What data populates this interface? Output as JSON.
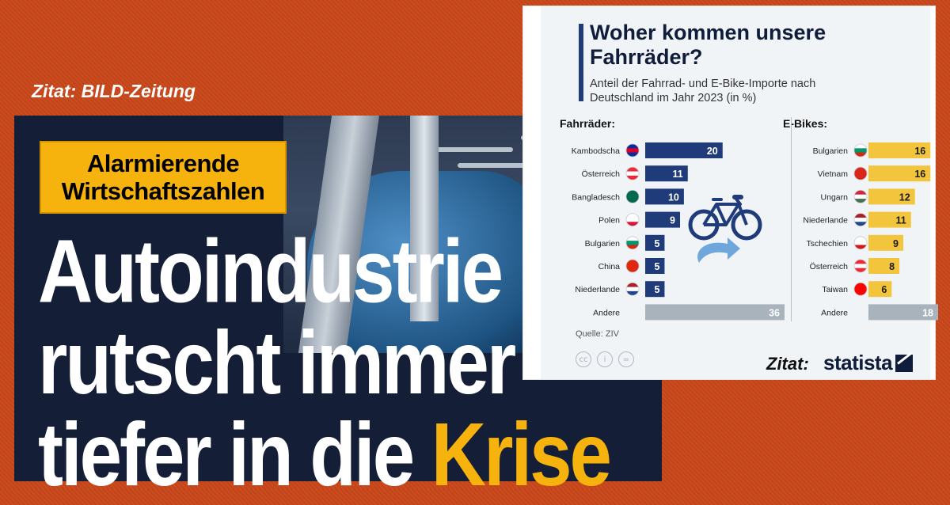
{
  "left_quote": "Zitat: BILD-Zeitung",
  "bild": {
    "tag_lines": [
      "Alarmierende",
      "Wirtschaftszahlen"
    ],
    "headline": [
      "Autoindustrie",
      "rutscht immer",
      "tiefer in die "
    ],
    "headline_accent": "Krise"
  },
  "statista": {
    "title": "Woher kommen unsere Fahrräder?",
    "subtitle": "Anteil der Fahrrad- und E-Bike-Importe nach Deutschland im Jahr 2023 (in %)",
    "source": "Quelle: ZIV",
    "license_icons": [
      "cc-icon",
      "person-icon",
      "equals-icon"
    ],
    "quote": "Zitat:",
    "logo": "statista",
    "colors": {
      "bike_bar": "#1f3b7a",
      "ebike_bar": "#f2c53d",
      "other_bar": "#a9b3bc",
      "title_accent": "#1f3b7a"
    }
  },
  "chart_data": [
    {
      "type": "bar",
      "title": "Fahrräder:",
      "categories": [
        "Kambodscha",
        "Österreich",
        "Bangladesch",
        "Polen",
        "Bulgarien",
        "China",
        "Niederlande",
        "Andere"
      ],
      "values": [
        20,
        11,
        10,
        9,
        5,
        5,
        5,
        36
      ],
      "orientation": "horizontal",
      "xlim": [
        0,
        36
      ]
    },
    {
      "type": "bar",
      "title": "E-Bikes:",
      "categories": [
        "Bulgarien",
        "Vietnam",
        "Ungarn",
        "Niederlande",
        "Tschechien",
        "Österreich",
        "Taiwan",
        "Andere"
      ],
      "values": [
        16,
        16,
        12,
        11,
        9,
        8,
        6,
        18
      ],
      "orientation": "horizontal",
      "xlim": [
        0,
        18
      ]
    }
  ]
}
